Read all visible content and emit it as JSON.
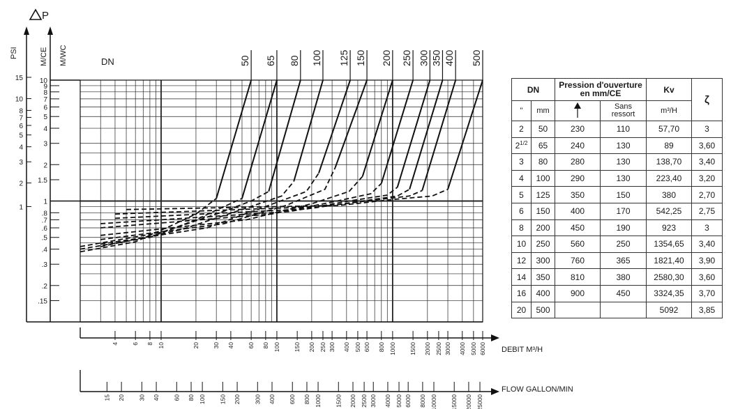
{
  "chart_data": {
    "type": "line",
    "title": "",
    "y_main_label": "ΔP",
    "y_axes": [
      {
        "label": "PSI",
        "ticks": [
          {
            "v": 0.9,
            "t": "1"
          },
          {
            "v": 1.41,
            "t": "2"
          },
          {
            "v": 2.11,
            "t": "3"
          },
          {
            "v": 2.81,
            "t": "4"
          },
          {
            "v": 3.52,
            "t": "5"
          },
          {
            "v": 4.22,
            "t": "6"
          },
          {
            "v": 4.92,
            "t": "7"
          },
          {
            "v": 5.62,
            "t": "8"
          },
          {
            "v": 7.03,
            "t": "10"
          },
          {
            "v": 10.55,
            "t": "15"
          }
        ]
      },
      {
        "label": "M/CE",
        "ticks": [
          "10",
          "9",
          "8",
          "7",
          "6",
          "5",
          "4",
          "3",
          "2",
          "1.5",
          "1",
          ".8",
          ".7",
          ".6",
          ".5",
          ".4",
          ".3",
          ".2",
          ".15"
        ]
      },
      {
        "label": "M/WC"
      }
    ],
    "y_range_mwc": [
      0.1,
      10
    ],
    "dn_label": "DN",
    "x_axes": [
      {
        "label": "DEBIT  M³/H",
        "range": [
          2,
          6000
        ],
        "ticks": [
          4,
          6,
          8,
          10,
          20,
          30,
          40,
          60,
          80,
          100,
          150,
          200,
          250,
          300,
          400,
          500,
          600,
          800,
          1000,
          1500,
          2000,
          2500,
          3000,
          4000,
          5000,
          6000
        ]
      },
      {
        "label": "FLOW GALLON/MIN",
        "ticks": [
          15,
          20,
          30,
          40,
          60,
          80,
          100,
          150,
          200,
          300,
          400,
          600,
          800,
          1000,
          1500,
          2000,
          2500,
          3000,
          4000,
          5000,
          6000,
          8000,
          10000,
          15000,
          20000,
          25000
        ]
      }
    ],
    "grid": true,
    "series": [
      {
        "name": "50",
        "points": [
          [
            2,
            0.38
          ],
          [
            6,
            0.46
          ],
          [
            12,
            0.62
          ],
          [
            20,
            0.78
          ],
          [
            30,
            1.05
          ],
          [
            60,
            10
          ]
        ]
      },
      {
        "name": "65",
        "points": [
          [
            2,
            0.4
          ],
          [
            8,
            0.5
          ],
          [
            20,
            0.7
          ],
          [
            35,
            0.9
          ],
          [
            50,
            1.05
          ],
          [
            100,
            10
          ]
        ]
      },
      {
        "name": "80",
        "points": [
          [
            2,
            0.42
          ],
          [
            10,
            0.55
          ],
          [
            30,
            0.78
          ],
          [
            60,
            1.0
          ],
          [
            85,
            1.2
          ],
          [
            160,
            10
          ]
        ]
      },
      {
        "name": "100",
        "points": [
          [
            3,
            0.42
          ],
          [
            15,
            0.58
          ],
          [
            50,
            0.85
          ],
          [
            110,
            1.1
          ],
          [
            140,
            1.45
          ],
          [
            250,
            10
          ]
        ]
      },
      {
        "name": "125",
        "points": [
          [
            3,
            0.44
          ],
          [
            25,
            0.6
          ],
          [
            80,
            0.9
          ],
          [
            180,
            1.2
          ],
          [
            230,
            1.7
          ],
          [
            430,
            10
          ]
        ]
      },
      {
        "name": "150",
        "points": [
          [
            3,
            0.48
          ],
          [
            35,
            0.65
          ],
          [
            120,
            0.92
          ],
          [
            260,
            1.25
          ],
          [
            320,
            1.9
          ],
          [
            600,
            10
          ]
        ]
      },
      {
        "name": "200",
        "points": [
          [
            3,
            0.52
          ],
          [
            55,
            0.7
          ],
          [
            200,
            0.95
          ],
          [
            420,
            1.2
          ],
          [
            550,
            1.6
          ],
          [
            1000,
            10
          ]
        ]
      },
      {
        "name": "250",
        "points": [
          [
            3,
            0.6
          ],
          [
            90,
            0.78
          ],
          [
            300,
            0.98
          ],
          [
            650,
            1.15
          ],
          [
            800,
            1.4
          ],
          [
            1500,
            10
          ]
        ]
      },
      {
        "name": "300",
        "points": [
          [
            3,
            0.65
          ],
          [
            130,
            0.82
          ],
          [
            420,
            1.0
          ],
          [
            900,
            1.12
          ],
          [
            1100,
            1.3
          ],
          [
            2100,
            10
          ]
        ]
      },
      {
        "name": "350",
        "points": [
          [
            4,
            0.72
          ],
          [
            180,
            0.86
          ],
          [
            550,
            1.0
          ],
          [
            1100,
            1.1
          ],
          [
            1400,
            1.25
          ],
          [
            2700,
            10
          ]
        ]
      },
      {
        "name": "400",
        "points": [
          [
            4,
            0.78
          ],
          [
            250,
            0.9
          ],
          [
            700,
            1.02
          ],
          [
            1400,
            1.1
          ],
          [
            1800,
            1.22
          ],
          [
            3500,
            10
          ]
        ]
      },
      {
        "name": "500",
        "points": [
          [
            5,
            0.85
          ],
          [
            350,
            0.92
          ],
          [
            1000,
            1.03
          ],
          [
            2200,
            1.1
          ],
          [
            3000,
            1.25
          ],
          [
            6000,
            10
          ]
        ]
      }
    ]
  },
  "table": {
    "headers": {
      "dn": "DN",
      "pressure": "Pression d'ouverture en mm/CE",
      "kv": "Kv",
      "zeta": "ζ",
      "inch": "\"",
      "mm": "mm",
      "arrow": "arrow-up-icon",
      "sans": "Sans ressort",
      "kv_unit": "m³/H"
    },
    "rows": [
      {
        "inch": "2",
        "sup": "",
        "mm": "50",
        "p1": "230",
        "p2": "110",
        "kv": "57,70",
        "z": "3"
      },
      {
        "inch": "2",
        "sup": "1/2",
        "mm": "65",
        "p1": "240",
        "p2": "130",
        "kv": "89",
        "z": "3,60"
      },
      {
        "inch": "3",
        "sup": "",
        "mm": "80",
        "p1": "280",
        "p2": "130",
        "kv": "138,70",
        "z": "3,40"
      },
      {
        "inch": "4",
        "sup": "",
        "mm": "100",
        "p1": "290",
        "p2": "130",
        "kv": "223,40",
        "z": "3,20"
      },
      {
        "inch": "5",
        "sup": "",
        "mm": "125",
        "p1": "350",
        "p2": "150",
        "kv": "380",
        "z": "2,70"
      },
      {
        "inch": "6",
        "sup": "",
        "mm": "150",
        "p1": "400",
        "p2": "170",
        "kv": "542,25",
        "z": "2,75"
      },
      {
        "inch": "8",
        "sup": "",
        "mm": "200",
        "p1": "450",
        "p2": "190",
        "kv": "923",
        "z": "3"
      },
      {
        "inch": "10",
        "sup": "",
        "mm": "250",
        "p1": "560",
        "p2": "250",
        "kv": "1354,65",
        "z": "3,40"
      },
      {
        "inch": "12",
        "sup": "",
        "mm": "300",
        "p1": "760",
        "p2": "365",
        "kv": "1821,40",
        "z": "3,90"
      },
      {
        "inch": "14",
        "sup": "",
        "mm": "350",
        "p1": "810",
        "p2": "380",
        "kv": "2580,30",
        "z": "3,60"
      },
      {
        "inch": "16",
        "sup": "",
        "mm": "400",
        "p1": "900",
        "p2": "450",
        "kv": "3324,35",
        "z": "3,70"
      },
      {
        "inch": "20",
        "sup": "",
        "mm": "500",
        "p1": "",
        "p2": "",
        "kv": "5092",
        "z": "3,85"
      }
    ]
  }
}
